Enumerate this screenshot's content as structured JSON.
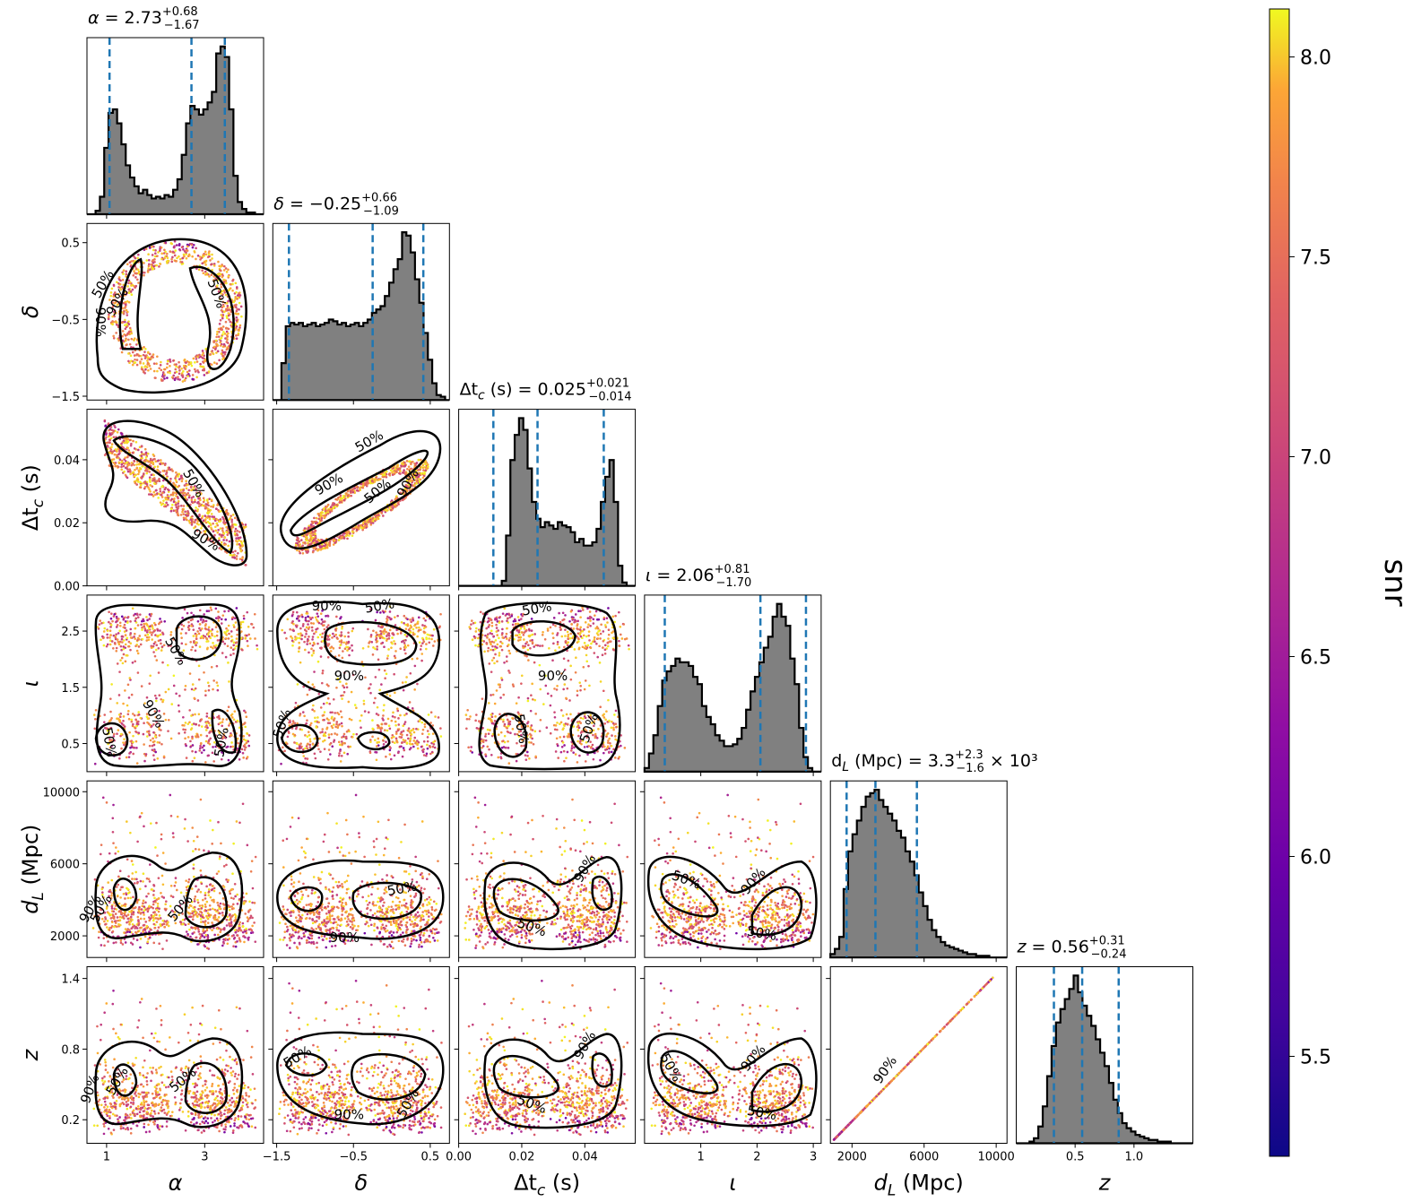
{
  "chart_data": {
    "type": "corner",
    "parameters": [
      {
        "key": "alpha",
        "axis_label": "α",
        "title_name": "α",
        "median": "2.73",
        "plus": "+0.68",
        "minus": "−1.67",
        "suffix": "",
        "range": [
          0.6,
          4.2
        ],
        "ticks": [
          1,
          3
        ],
        "tick_labels": [
          "1",
          "3"
        ],
        "quantiles": [
          1.06,
          2.73,
          3.41
        ],
        "hist": [
          0,
          0,
          2,
          10,
          38,
          58,
          60,
          52,
          40,
          28,
          21,
          16,
          12,
          14,
          11,
          9,
          10,
          9,
          11,
          10,
          14,
          20,
          34,
          52,
          62,
          60,
          57,
          60,
          64,
          70,
          92,
          96,
          90,
          60,
          22,
          7,
          3,
          1,
          1,
          0,
          0
        ]
      },
      {
        "key": "delta",
        "axis_label": "δ",
        "title_name": "δ",
        "median": "−0.25",
        "plus": "+0.66",
        "minus": "−1.09",
        "suffix": "",
        "range": [
          -1.55,
          0.75
        ],
        "ticks": [
          -1.5,
          -0.5,
          0.5
        ],
        "tick_labels": [
          "−1.5",
          "−0.5",
          "0.5"
        ],
        "quantiles": [
          -1.34,
          -0.25,
          0.41
        ],
        "hist": [
          0,
          0,
          22,
          44,
          46,
          45,
          46,
          44,
          45,
          46,
          44,
          45,
          46,
          48,
          47,
          45,
          46,
          44,
          45,
          46,
          44,
          46,
          48,
          52,
          54,
          56,
          62,
          70,
          78,
          84,
          100,
          98,
          88,
          72,
          58,
          40,
          24,
          10,
          3,
          2,
          0
        ]
      },
      {
        "key": "dtc",
        "axis_label": "Δt_c (s)",
        "title_name": "Δt_c (s)",
        "median": "0.025",
        "plus": "+0.021",
        "minus": "−0.014",
        "suffix": "",
        "range": [
          0.0,
          0.056
        ],
        "ticks": [
          0.0,
          0.02,
          0.04
        ],
        "tick_labels": [
          "0.00",
          "0.02",
          "0.04"
        ],
        "quantiles": [
          0.011,
          0.025,
          0.046
        ],
        "hist": [
          0,
          0,
          0,
          0,
          0,
          0,
          0,
          0,
          0,
          0,
          3,
          30,
          75,
          90,
          100,
          93,
          70,
          50,
          40,
          35,
          38,
          36,
          34,
          38,
          36,
          35,
          32,
          26,
          28,
          24,
          24,
          26,
          34,
          50,
          65,
          75,
          50,
          12,
          2,
          0,
          0
        ]
      },
      {
        "key": "iota",
        "axis_label": "ι",
        "title_name": "ι",
        "median": "2.06",
        "plus": "+0.81",
        "minus": "−1.70",
        "suffix": "",
        "range": [
          0.0,
          3.14
        ],
        "ticks": [
          1,
          2,
          3
        ],
        "tick_labels": [
          "1",
          "2",
          "3"
        ],
        "quantiles": [
          0.36,
          2.06,
          2.87
        ],
        "hist": [
          2,
          10,
          20,
          36,
          50,
          55,
          58,
          62,
          60,
          60,
          58,
          52,
          48,
          36,
          30,
          26,
          20,
          17,
          14,
          14,
          15,
          18,
          24,
          34,
          44,
          52,
          60,
          68,
          74,
          85,
          92,
          85,
          80,
          62,
          48,
          24,
          8,
          2,
          0,
          0
        ]
      },
      {
        "key": "dL",
        "axis_label": "d_L (Mpc)",
        "title_name": "d_L (Mpc)",
        "median": "3.3",
        "plus": "+2.3",
        "minus": "−1.6",
        "suffix": "× 10³",
        "range": [
          800,
          10600
        ],
        "ticks": [
          2000,
          6000,
          10000
        ],
        "tick_labels": [
          "2000",
          "6000",
          "10000"
        ],
        "quantiles": [
          1700,
          3300,
          5600
        ],
        "hist": [
          2,
          5,
          12,
          40,
          62,
          72,
          80,
          88,
          94,
          96,
          98,
          92,
          88,
          84,
          80,
          74,
          70,
          62,
          56,
          48,
          38,
          30,
          22,
          16,
          12,
          9,
          7,
          6,
          5,
          4,
          3,
          2,
          2,
          1,
          1,
          1,
          0,
          0,
          0,
          0
        ]
      },
      {
        "key": "z",
        "axis_label": "z",
        "title_name": "z",
        "median": "0.56",
        "plus": "+0.31",
        "minus": "−0.24",
        "suffix": "",
        "range": [
          0.0,
          1.5
        ],
        "ticks": [
          0.5,
          1.0
        ],
        "tick_labels": [
          "0.5",
          "1.0"
        ],
        "quantiles": [
          0.32,
          0.56,
          0.87
        ],
        "hist": [
          0,
          0,
          0,
          1,
          3,
          10,
          22,
          40,
          58,
          72,
          80,
          86,
          92,
          100,
          90,
          82,
          76,
          70,
          62,
          54,
          46,
          36,
          26,
          18,
          12,
          9,
          7,
          5,
          4,
          3,
          2,
          2,
          1,
          1,
          1,
          0,
          0,
          0,
          0,
          0
        ]
      }
    ],
    "left_tick_labels": {
      "delta": [
        "−1.5",
        "−0.5",
        "0.5"
      ],
      "dtc": [
        "0.00",
        "0.02",
        "0.04"
      ],
      "iota": [
        "0.5",
        "1.5",
        "2.5"
      ],
      "dL": [
        "2000",
        "6000",
        "10000"
      ],
      "z": [
        "0.2",
        "0.8",
        "1.4"
      ]
    },
    "left_tick_values": {
      "delta": [
        -1.5,
        -0.5,
        0.5
      ],
      "dtc": [
        0.0,
        0.02,
        0.04
      ],
      "iota": [
        0.5,
        1.5,
        2.5
      ],
      "dL": [
        2000,
        6000,
        10000
      ],
      "z": [
        0.2,
        0.8,
        1.4
      ]
    },
    "contour_levels": [
      "50%",
      "90%"
    ],
    "colorbar": {
      "label": "snr",
      "colormap": "plasma",
      "range": [
        5.25,
        8.12
      ],
      "ticks": [
        5.5,
        6.0,
        6.5,
        7.0,
        7.5,
        8.0
      ],
      "tick_labels": [
        "5.5",
        "6.0",
        "6.5",
        "7.0",
        "7.5",
        "8.0"
      ]
    },
    "colors": {
      "histogram_fill": "#808080",
      "quantile_line": "#1f77b4",
      "contour": "#000000"
    }
  }
}
